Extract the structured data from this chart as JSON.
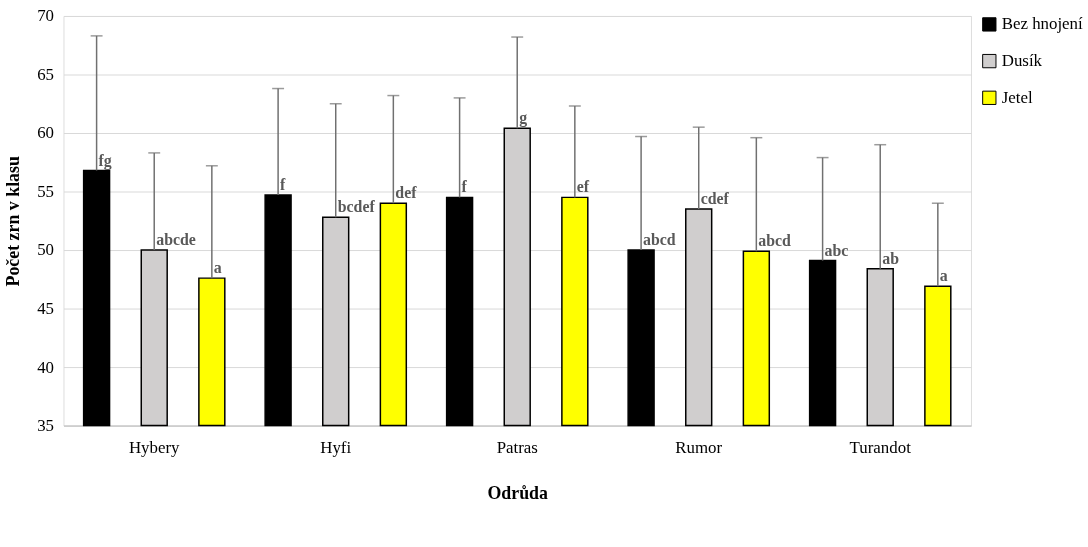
{
  "chart_data": {
    "type": "bar",
    "xlabel": "Odrůda",
    "ylabel": "Počet zrn v klasu",
    "categories": [
      "Hybery",
      "Hyfi",
      "Patras",
      "Rumor",
      "Turandot"
    ],
    "series": [
      {
        "name": "Bez hnojení",
        "color": "#000000",
        "values": [
          56.8,
          54.7,
          54.5,
          50.0,
          49.1
        ],
        "errors": [
          [
            56.8,
            68.3
          ],
          [
            54.7,
            63.8
          ],
          [
            54.5,
            63.0
          ],
          [
            50.0,
            59.7
          ],
          [
            49.1,
            57.9
          ]
        ],
        "value_labels": [
          "fg",
          "f",
          "f",
          "abcd",
          "abc"
        ]
      },
      {
        "name": "Dusík",
        "color": "#d0cece",
        "values": [
          50.0,
          52.8,
          60.4,
          53.5,
          48.4
        ],
        "errors": [
          [
            50.0,
            58.3
          ],
          [
            52.8,
            62.5
          ],
          [
            60.4,
            68.2
          ],
          [
            53.5,
            60.5
          ],
          [
            48.4,
            59.0
          ]
        ],
        "value_labels": [
          "abcde",
          "bcdef",
          "g",
          "cdef",
          "ab"
        ]
      },
      {
        "name": "Jetel",
        "color": "#ffff00",
        "values": [
          47.6,
          54.0,
          54.5,
          49.9,
          46.9
        ],
        "errors": [
          [
            47.6,
            57.2
          ],
          [
            54.0,
            63.2
          ],
          [
            54.5,
            62.3
          ],
          [
            49.9,
            59.6
          ],
          [
            46.9,
            54.0
          ]
        ],
        "value_labels": [
          "a",
          "def",
          "ef",
          "abcd",
          "a"
        ]
      }
    ],
    "ylim": [
      35,
      70
    ],
    "yticks": [
      35,
      40,
      45,
      50,
      55,
      60,
      65,
      70
    ],
    "grid": "y",
    "legend": "right"
  }
}
